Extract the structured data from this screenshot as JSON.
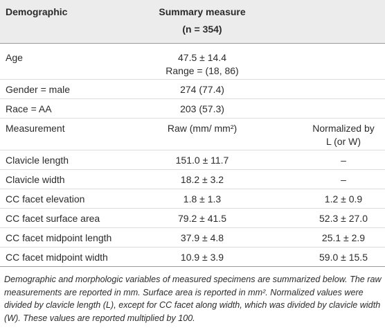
{
  "table": {
    "header": {
      "label": "Demographic",
      "summary": "Summary measure",
      "summary_sub": "(n = 354)"
    },
    "rows": [
      {
        "label": "Age",
        "summary": [
          "47.5 ± 14.4",
          "Range = (18, 86)"
        ]
      },
      {
        "label": "Gender = male",
        "summary": [
          "274 (77.4)"
        ]
      },
      {
        "label": "Race = AA",
        "summary": [
          "203 (57.3)"
        ]
      },
      {
        "label": "Measurement",
        "summary": [
          "Raw (mm/ mm²)"
        ],
        "normalized": [
          "Normalized by",
          "L (or W)"
        ]
      },
      {
        "label": "Clavicle length",
        "summary": [
          "151.0 ± 11.7"
        ],
        "normalized": [
          "–"
        ]
      },
      {
        "label": "Clavicle width",
        "summary": [
          "18.2 ± 3.2"
        ],
        "normalized": [
          "–"
        ]
      },
      {
        "label": "CC facet elevation",
        "summary": [
          "1.8 ± 1.3"
        ],
        "normalized": [
          "1.2 ± 0.9"
        ]
      },
      {
        "label": "CC facet surface area",
        "summary": [
          "79.2 ± 41.5"
        ],
        "normalized": [
          "52.3 ± 27.0"
        ]
      },
      {
        "label": "CC facet midpoint length",
        "summary": [
          "37.9 ± 4.8"
        ],
        "normalized": [
          "25.1 ± 2.9"
        ]
      },
      {
        "label": "CC facet midpoint width",
        "summary": [
          "10.9 ± 3.9"
        ],
        "normalized": [
          "59.0 ± 15.5"
        ]
      }
    ],
    "footnote": "Demographic and morphologic variables of measured specimens are summarized below. The raw measurements are reported in mm. Surface area is reported in mm². Normalized values were divided by clavicle length (L), except for CC facet along width, which was divided by clavicle width (W). These values are reported multiplied by 100."
  }
}
